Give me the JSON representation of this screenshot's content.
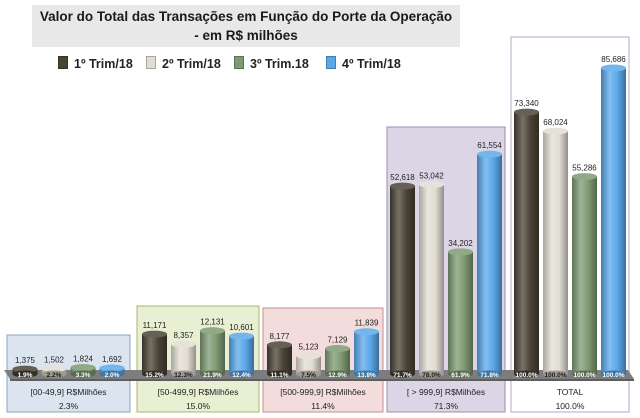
{
  "title": {
    "line1": "Valor do Total das Transações em Função do Porte da Operação",
    "line2": "- em R$ milhões"
  },
  "colors": {
    "series": [
      "#4a4336",
      "#e2ddd2",
      "#7e9a72",
      "#5aa8ea"
    ],
    "group_fills": [
      "#dbe5ef",
      "#e8efd2",
      "#f3dcdc",
      "#dcd5e6",
      "#ffffff"
    ],
    "group_strokes": [
      "#8aa3bf",
      "#a6b86e",
      "#c98e8e",
      "#9a8db5",
      "#b2a8c8"
    ],
    "axis_band": "#7d7d7d"
  },
  "chart_data": {
    "type": "bar",
    "title": "Valor do Total das Transações em Função do Porte da Operação - em R$ milhões",
    "legend_position": "top",
    "categories": [
      "[00-49,9] R$Milhões",
      "[50-499,9] R$Milhões",
      "[500-999,9] R$Milhões",
      "[ > 999,9] R$Milhões",
      "TOTAL"
    ],
    "category_shares": [
      "2.3%",
      "15.0%",
      "11.4%",
      "71.3%",
      "100.0%"
    ],
    "series": [
      {
        "name": "1º Trim/18",
        "values": [
          1375,
          11171,
          8177,
          52618,
          73340
        ],
        "value_labels": [
          "1,375",
          "11,171",
          "8,177",
          "52,618",
          "73,340"
        ],
        "share_labels": [
          "1.9%",
          "15.2%",
          "11.1%",
          "71.7%",
          "100.0%"
        ]
      },
      {
        "name": "2º Trim/18",
        "values": [
          1502,
          8357,
          5123,
          53042,
          68024
        ],
        "value_labels": [
          "1,502",
          "8,357",
          "5,123",
          "53,042",
          "68,024"
        ],
        "share_labels": [
          "2.2%",
          "12.3%",
          "7.5%",
          "78.0%",
          "100.0%"
        ]
      },
      {
        "name": "3º Trim.18",
        "values": [
          1824,
          12131,
          7129,
          34202,
          55286
        ],
        "value_labels": [
          "1,824",
          "12,131",
          "7,129",
          "34,202",
          "55,286"
        ],
        "share_labels": [
          "3.3%",
          "21.9%",
          "12.9%",
          "61.9%",
          "100.0%"
        ]
      },
      {
        "name": "4º Trim/18",
        "values": [
          1692,
          10601,
          11839,
          61554,
          85686
        ],
        "value_labels": [
          "1,692",
          "10,601",
          "11,839",
          "61,554",
          "85,686"
        ],
        "share_labels": [
          "2.0%",
          "12.4%",
          "13.8%",
          "71.8%",
          "100.0%"
        ]
      }
    ],
    "ylim": [
      0,
      85686
    ],
    "grid": false
  }
}
